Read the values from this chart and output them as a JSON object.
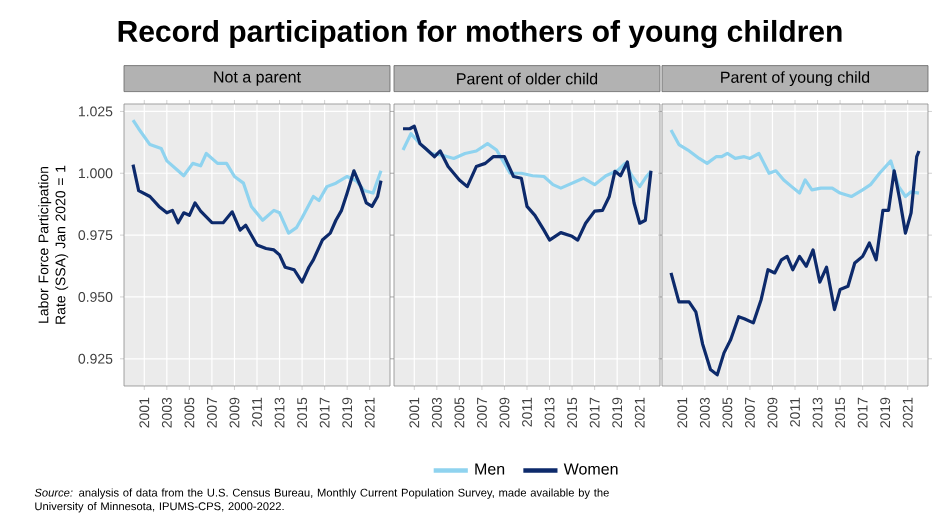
{
  "chart_data": [
    {
      "type": "line",
      "title": "Record participation for mothers of young children",
      "subtitle": "Not a parent",
      "ylabel": "Labor Force Participation Rate (SSA) Jan 2020 = 1",
      "annotations": [
        "*Source:* analysis of data from the U.S. Census Bureau, Monthly Current Population Survey, made available by the University of Minnesota, IPUMS-CPS, 2000-2022."
      ],
      "xlim": [
        1999.2,
        2022.8
      ],
      "ylim": [
        0.914,
        1.028
      ],
      "xticks": [
        2001,
        2003,
        2005,
        2007,
        2009,
        2011,
        2013,
        2015,
        2017,
        2019,
        2021
      ],
      "yticks": [
        {
          "value": 0.925,
          "label": "0.925"
        },
        {
          "value": 0.95,
          "label": "0.950"
        },
        {
          "value": 0.975,
          "label": "0.975"
        },
        {
          "value": 1.0,
          "label": "1.000"
        },
        {
          "value": 1.025,
          "label": "1.025"
        }
      ],
      "grid": true,
      "marker": "none",
      "series": [
        {
          "color": "#8fd3ef",
          "x": [
            2000,
            2000.5,
            2001.5,
            2002.5,
            2003,
            2004,
            2004.5,
            2005.3,
            2006,
            2006.5,
            2007.5,
            2008.3,
            2009,
            2009.8,
            2010.5,
            2011.5,
            2012.5,
            2013,
            2013.8,
            2014.5,
            2015,
            2016,
            2016.5,
            2017.2,
            2018,
            2019,
            2019.8,
            2020.5,
            2021.3,
            2022
          ],
          "values": [
            1.0215,
            1.018,
            1.0116,
            1.01,
            1.005,
            1.001,
            0.999,
            1.004,
            1.003,
            1.008,
            1.004,
            1.004,
            0.9987,
            0.996,
            0.9866,
            0.981,
            0.985,
            0.984,
            0.9758,
            0.978,
            0.982,
            0.9906,
            0.989,
            0.9946,
            0.996,
            0.9987,
            0.997,
            0.993,
            0.992,
            1.001
          ]
        },
        {
          "color": "#0d2a6b",
          "x": [
            2000,
            2000.5,
            2001.5,
            2002.3,
            2003,
            2003.5,
            2004,
            2004.5,
            2005,
            2005.5,
            2006,
            2007,
            2008,
            2008.8,
            2009.5,
            2010,
            2011,
            2011.8,
            2012.5,
            2013,
            2013.5,
            2014.3,
            2015,
            2015.6,
            2016,
            2016.8,
            2017.5,
            2018,
            2018.5,
            2019,
            2019.6,
            2020.2,
            2020.7,
            2021.2,
            2021.7,
            2022
          ],
          "values": [
            1.0035,
            0.993,
            0.9906,
            0.9866,
            0.984,
            0.985,
            0.98,
            0.984,
            0.983,
            0.988,
            0.9847,
            0.98,
            0.98,
            0.9844,
            0.977,
            0.979,
            0.971,
            0.9696,
            0.969,
            0.967,
            0.962,
            0.961,
            0.956,
            0.962,
            0.965,
            0.973,
            0.9758,
            0.981,
            0.985,
            0.992,
            1.001,
            0.9946,
            0.988,
            0.9866,
            0.9906,
            0.997
          ]
        }
      ]
    },
    {
      "type": "line",
      "subtitle": "Parent of older child",
      "xlim": [
        1999.2,
        2022.8
      ],
      "ylim": [
        0.914,
        1.028
      ],
      "xticks": [
        2001,
        2003,
        2005,
        2007,
        2009,
        2011,
        2013,
        2015,
        2017,
        2019,
        2021
      ],
      "yticks": [
        0.925,
        0.95,
        0.975,
        1.0,
        1.025
      ],
      "tick_labels": "x",
      "grid": true,
      "legend": "bottom",
      "marker": "none",
      "series": [
        {
          "name": "Men",
          "color": "#8fd3ef",
          "x": [
            2000,
            2000.7,
            2001.5,
            2002.5,
            2003.5,
            2004.5,
            2005.5,
            2006.5,
            2007.5,
            2008.3,
            2009.5,
            2010.5,
            2011.5,
            2012.5,
            2013.3,
            2014,
            2015,
            2016,
            2017,
            2018,
            2019,
            2019.7,
            2020.3,
            2021,
            2021.6,
            2022
          ],
          "values": [
            1.0094,
            1.016,
            1.012,
            1.008,
            1.0073,
            1.006,
            1.008,
            1.009,
            1.012,
            1.0094,
            1.0,
            1.0,
            0.999,
            0.9987,
            0.9954,
            0.994,
            0.996,
            0.998,
            0.9954,
            0.999,
            1.001,
            1.004,
            0.999,
            0.9946,
            0.9987,
            1.0008
          ]
        },
        {
          "name": "Women",
          "color": "#0d2a6b",
          "x": [
            2000,
            2000.6,
            2001,
            2001.5,
            2002,
            2002.8,
            2003.3,
            2004,
            2005,
            2005.7,
            2006.5,
            2007.3,
            2008,
            2009,
            2009.8,
            2010.5,
            2011,
            2011.7,
            2012.5,
            2013,
            2014,
            2015,
            2015.5,
            2016.2,
            2017,
            2017.7,
            2018.3,
            2018.8,
            2019.3,
            2019.9,
            2020.5,
            2021,
            2021.5,
            2022
          ],
          "values": [
            1.018,
            1.018,
            1.019,
            1.012,
            1.01,
            1.0067,
            1.009,
            1.0027,
            0.9973,
            0.9946,
            1.0027,
            1.004,
            1.0067,
            1.0067,
            0.9987,
            0.998,
            0.9866,
            0.983,
            0.977,
            0.973,
            0.976,
            0.9745,
            0.973,
            0.9798,
            0.9847,
            0.985,
            0.9906,
            1.0008,
            0.999,
            1.0046,
            0.988,
            0.9798,
            0.981,
            1.001
          ]
        }
      ]
    },
    {
      "type": "line",
      "subtitle": "Parent of young child",
      "xlim": [
        1999.2,
        2022.8
      ],
      "ylim": [
        0.914,
        1.028
      ],
      "xticks": [
        2001,
        2003,
        2005,
        2007,
        2009,
        2011,
        2013,
        2015,
        2017,
        2019,
        2021
      ],
      "yticks": [
        0.925,
        0.95,
        0.975,
        1.0,
        1.025
      ],
      "tick_labels": "x",
      "grid": true,
      "marker": "none",
      "series": [
        {
          "color": "#8fd3ef",
          "x": [
            2000,
            2000.7,
            2001.5,
            2002.5,
            2003.2,
            2004,
            2004.5,
            2005,
            2005.7,
            2006.5,
            2007,
            2007.8,
            2008.7,
            2009.3,
            2010,
            2010.7,
            2011.4,
            2011.9,
            2012.5,
            2013.3,
            2014.3,
            2015,
            2016,
            2017,
            2017.7,
            2018.5,
            2019.5,
            2020.2,
            2020.8,
            2021.3,
            2022
          ],
          "values": [
            1.0175,
            1.0116,
            1.0094,
            1.006,
            1.004,
            1.0067,
            1.0067,
            1.008,
            1.006,
            1.0067,
            1.006,
            1.008,
            1.0,
            1.001,
            0.9973,
            0.9946,
            0.992,
            0.9973,
            0.9933,
            0.994,
            0.994,
            0.992,
            0.9906,
            0.9933,
            0.9954,
            1.0,
            1.005,
            0.9946,
            0.9906,
            0.9925,
            0.992
          ]
        },
        {
          "color": "#0d2a6b",
          "x": [
            2000,
            2000.7,
            2001.6,
            2002.2,
            2002.8,
            2003.5,
            2004.1,
            2004.7,
            2005.3,
            2006,
            2006.5,
            2007.3,
            2008,
            2008.6,
            2009.2,
            2009.8,
            2010.3,
            2010.8,
            2011.4,
            2012,
            2012.6,
            2013.2,
            2013.8,
            2014.5,
            2015,
            2015.7,
            2016.3,
            2017,
            2017.6,
            2018.2,
            2018.8,
            2019.3,
            2019.8,
            2020.3,
            2020.8,
            2021.3,
            2021.8,
            2022
          ],
          "values": [
            0.9597,
            0.948,
            0.948,
            0.944,
            0.931,
            0.9207,
            0.9185,
            0.9274,
            0.9328,
            0.942,
            0.9412,
            0.9395,
            0.949,
            0.961,
            0.9597,
            0.965,
            0.9664,
            0.961,
            0.9664,
            0.9624,
            0.969,
            0.956,
            0.962,
            0.9449,
            0.953,
            0.9543,
            0.9637,
            0.9664,
            0.9718,
            0.965,
            0.985,
            0.985,
            1.001,
            0.9892,
            0.9758,
            0.984,
            1.0067,
            1.009
          ]
        }
      ]
    }
  ]
}
